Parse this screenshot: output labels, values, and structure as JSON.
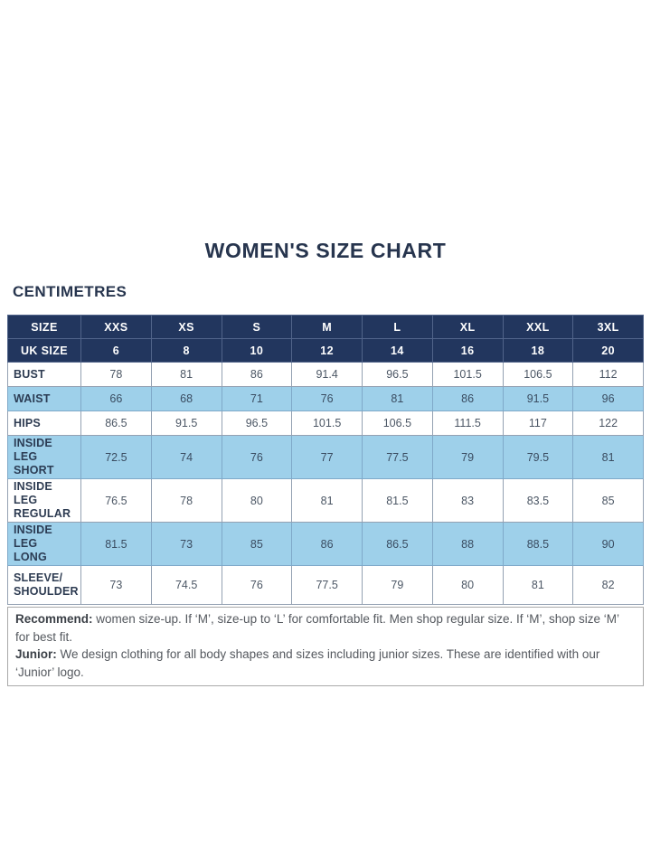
{
  "page": {
    "title": "WOMEN'S SIZE CHART",
    "unit_heading": "CENTIMETRES"
  },
  "colors": {
    "header_navy": "#22365e",
    "shaded_row_blue": "#9ed0ea",
    "title_navy": "#27354e"
  },
  "table": {
    "header_rows": [
      {
        "label": "SIZE",
        "values": [
          "XXS",
          "XS",
          "S",
          "M",
          "L",
          "XL",
          "XXL",
          "3XL"
        ]
      },
      {
        "label": "UK SIZE",
        "values": [
          "6",
          "8",
          "10",
          "12",
          "14",
          "16",
          "18",
          "20"
        ]
      }
    ],
    "rows": [
      {
        "label": "BUST",
        "shaded": false,
        "twoline": false,
        "values": [
          "78",
          "81",
          "86",
          "91.4",
          "96.5",
          "101.5",
          "106.5",
          "112"
        ]
      },
      {
        "label": "WAIST",
        "shaded": true,
        "twoline": false,
        "values": [
          "66",
          "68",
          "71",
          "76",
          "81",
          "86",
          "91.5",
          "96"
        ]
      },
      {
        "label": "HIPS",
        "shaded": false,
        "twoline": false,
        "values": [
          "86.5",
          "91.5",
          "96.5",
          "101.5",
          "106.5",
          "111.5",
          "117",
          "122"
        ]
      },
      {
        "label": "INSIDE LEG\nSHORT",
        "shaded": true,
        "twoline": true,
        "values": [
          "72.5",
          "74",
          "76",
          "77",
          "77.5",
          "79",
          "79.5",
          "81"
        ]
      },
      {
        "label": "INSIDE LEG\nREGULAR",
        "shaded": false,
        "twoline": true,
        "values": [
          "76.5",
          "78",
          "80",
          "81",
          "81.5",
          "83",
          "83.5",
          "85"
        ]
      },
      {
        "label": "INSIDE LEG\nLONG",
        "shaded": true,
        "twoline": true,
        "values": [
          "81.5",
          "73",
          "85",
          "86",
          "86.5",
          "88",
          "88.5",
          "90"
        ]
      },
      {
        "label": "SLEEVE/\nSHOULDER",
        "shaded": false,
        "twoline": true,
        "values": [
          "73",
          "74.5",
          "76",
          "77.5",
          "79",
          "80",
          "81",
          "82"
        ]
      }
    ]
  },
  "notes": {
    "recommend_label": "Recommend:",
    "recommend_text": " women size-up. If ‘M’, size-up to ‘L’ for comfortable fit. Men shop regular size. If ‘M’, shop size ‘M’ for best fit.",
    "junior_label": "Junior:",
    "junior_text": " We design clothing for all body shapes and sizes including junior sizes. These are identified with our ‘Junior’ logo."
  }
}
